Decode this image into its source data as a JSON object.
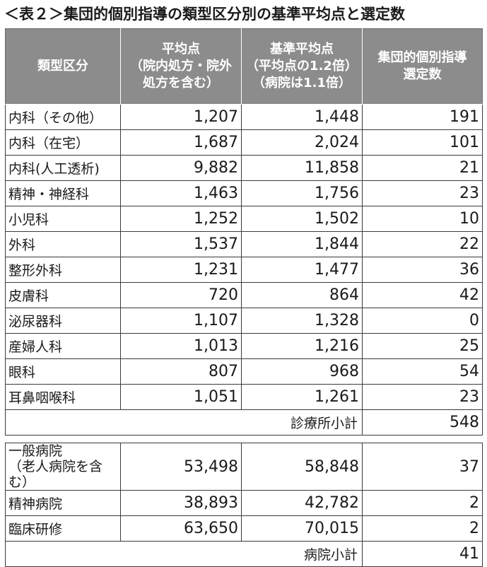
{
  "title": "＜表２＞集団的個別指導の類型区分別の基準平均点と選定数",
  "headers": {
    "col1": "類型区分",
    "col2": [
      "平均点",
      "（院内処方・院外",
      "処方を含む）"
    ],
    "col3": [
      "基準平均点",
      "（平均点の1.2倍）",
      "（病院は1.1倍）"
    ],
    "col4": [
      "集団的個別指導",
      "選定数"
    ]
  },
  "clinic_rows": [
    {
      "name": "内科（その他）",
      "avg": "1,207",
      "base": "1,448",
      "count": "191"
    },
    {
      "name": "内科（在宅）",
      "avg": "1,687",
      "base": "2,024",
      "count": "101"
    },
    {
      "name": "内科(人工透析)",
      "avg": "9,882",
      "base": "11,858",
      "count": "21"
    },
    {
      "name": "精神・神経科",
      "avg": "1,463",
      "base": "1,756",
      "count": "23"
    },
    {
      "name": "小児科",
      "avg": "1,252",
      "base": "1,502",
      "count": "10"
    },
    {
      "name": "外科",
      "avg": "1,537",
      "base": "1,844",
      "count": "22"
    },
    {
      "name": "整形外科",
      "avg": "1,231",
      "base": "1,477",
      "count": "36"
    },
    {
      "name": "皮膚科",
      "avg": "720",
      "base": "864",
      "count": "42"
    },
    {
      "name": "泌尿器科",
      "avg": "1,107",
      "base": "1,328",
      "count": "0"
    },
    {
      "name": "産婦人科",
      "avg": "1,013",
      "base": "1,216",
      "count": "25"
    },
    {
      "name": "眼科",
      "avg": "807",
      "base": "968",
      "count": "54"
    },
    {
      "name": "耳鼻咽喉科",
      "avg": "1,051",
      "base": "1,261",
      "count": "23"
    }
  ],
  "clinic_subtotal": {
    "label": "診療所小計",
    "count": "548"
  },
  "hospital_rows": [
    {
      "name": [
        "一般病院",
        "（老人病院を含む）"
      ],
      "avg": "53,498",
      "base": "58,848",
      "count": "37"
    },
    {
      "name": [
        "精神病院"
      ],
      "avg": "38,893",
      "base": "42,782",
      "count": "2"
    },
    {
      "name": [
        "臨床研修"
      ],
      "avg": "63,650",
      "base": "70,015",
      "count": "2"
    }
  ],
  "hospital_subtotal": {
    "label": "病院小計",
    "count": "41"
  }
}
